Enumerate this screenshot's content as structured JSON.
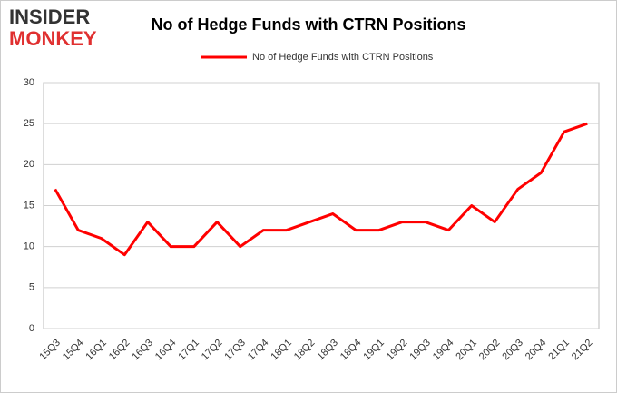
{
  "logo": {
    "top": "INSIDER",
    "bottom": "MONKEY"
  },
  "chart_data": {
    "type": "line",
    "title": "No of Hedge Funds with CTRN Positions",
    "categories": [
      "15Q3",
      "15Q4",
      "16Q1",
      "16Q2",
      "16Q3",
      "16Q4",
      "17Q1",
      "17Q2",
      "17Q3",
      "17Q4",
      "18Q1",
      "18Q2",
      "18Q3",
      "18Q4",
      "19Q1",
      "19Q2",
      "19Q3",
      "19Q4",
      "20Q1",
      "20Q2",
      "20Q3",
      "20Q4",
      "21Q1",
      "21Q2"
    ],
    "series": [
      {
        "name": "No of Hedge Funds with CTRN Positions",
        "color": "#ff0000",
        "values": [
          17,
          12,
          11,
          9,
          13,
          10,
          10,
          13,
          10,
          12,
          12,
          13,
          14,
          12,
          12,
          13,
          13,
          12,
          15,
          13,
          17,
          19,
          24,
          25
        ]
      }
    ],
    "ylim": [
      0,
      30
    ],
    "yticks": [
      0,
      5,
      10,
      15,
      20,
      25,
      30
    ],
    "grid": true,
    "legend": "top"
  }
}
